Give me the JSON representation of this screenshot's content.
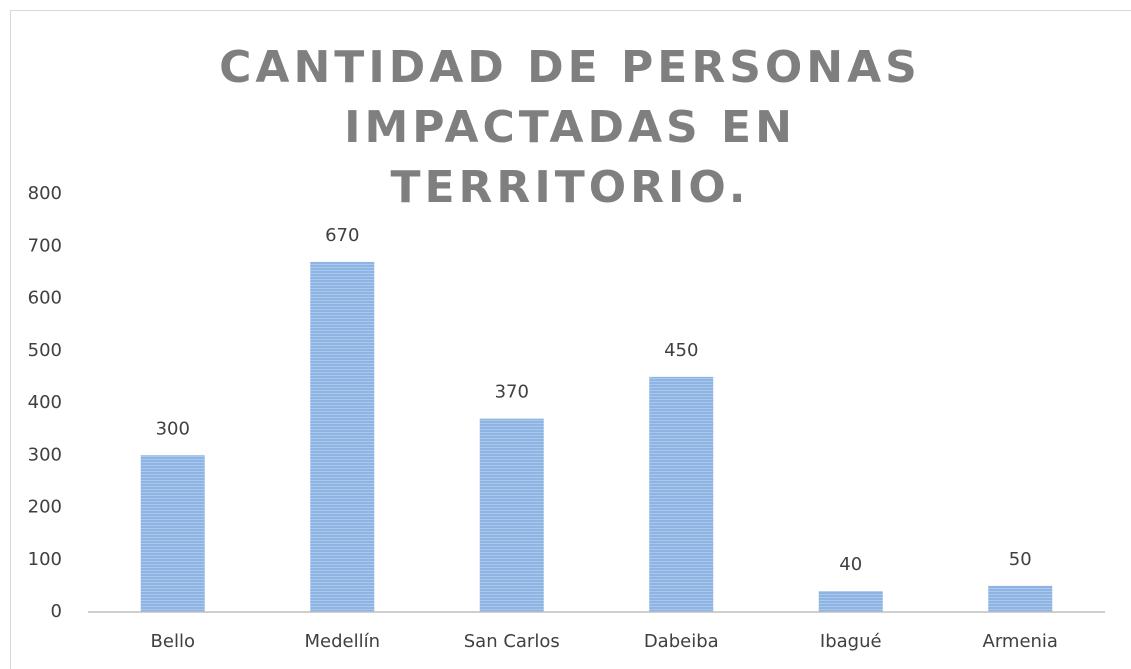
{
  "chart_data": {
    "type": "bar",
    "title": "CANTIDAD DE PERSONAS IMPACTADAS EN TERRITORIO.",
    "categories": [
      "Bello",
      "Medellín",
      "San Carlos",
      "Dabeiba",
      "Ibagué",
      "Armenia"
    ],
    "values": [
      300,
      670,
      370,
      450,
      40,
      50
    ],
    "color": "#8db4e2",
    "ylim": [
      0,
      800
    ],
    "yticks": [
      0,
      100,
      200,
      300,
      400,
      500,
      600,
      700,
      800
    ],
    "grid": false
  }
}
